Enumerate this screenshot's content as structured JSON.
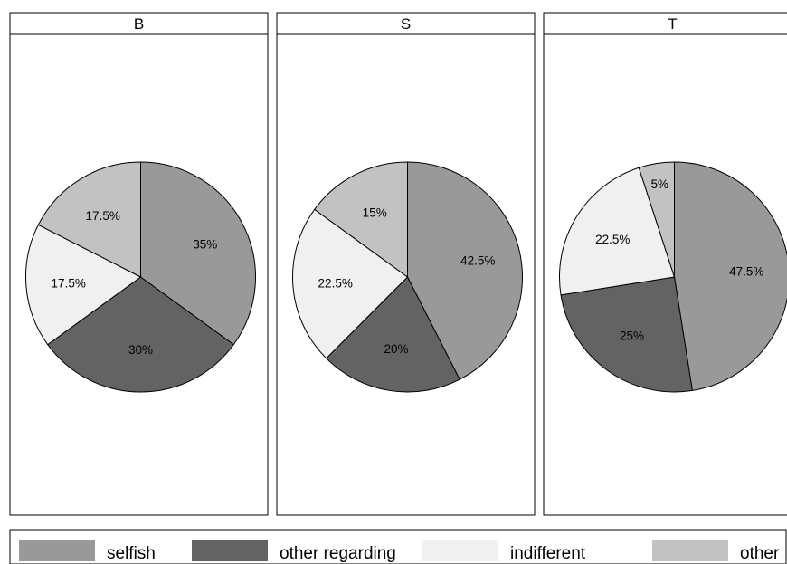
{
  "chart_data": {
    "type": "pie",
    "facets": [
      {
        "title": "B",
        "slices": [
          {
            "category": "selfish",
            "value": 35,
            "label": "35%"
          },
          {
            "category": "other regarding",
            "value": 30,
            "label": "30%"
          },
          {
            "category": "indifferent",
            "value": 17.5,
            "label": "17.5%"
          },
          {
            "category": "other",
            "value": 17.5,
            "label": "17.5%"
          }
        ]
      },
      {
        "title": "S",
        "slices": [
          {
            "category": "selfish",
            "value": 42.5,
            "label": "42.5%"
          },
          {
            "category": "other regarding",
            "value": 20,
            "label": "20%"
          },
          {
            "category": "indifferent",
            "value": 22.5,
            "label": "22.5%"
          },
          {
            "category": "other",
            "value": 15,
            "label": "15%"
          }
        ]
      },
      {
        "title": "T",
        "slices": [
          {
            "category": "selfish",
            "value": 47.5,
            "label": "47.5%"
          },
          {
            "category": "other regarding",
            "value": 25,
            "label": "25%"
          },
          {
            "category": "indifferent",
            "value": 22.5,
            "label": "22.5%"
          },
          {
            "category": "other",
            "value": 5,
            "label": "5%"
          }
        ]
      }
    ],
    "legend": {
      "placement": "bottom",
      "entries": [
        {
          "label": "selfish",
          "color": "#999999"
        },
        {
          "label": "other regarding",
          "color": "#636363"
        },
        {
          "label": "indifferent",
          "color": "#f0f0f0"
        },
        {
          "label": "other",
          "color": "#c2c2c2"
        }
      ]
    },
    "start_angle": "12 o'clock",
    "direction": "clockwise"
  }
}
